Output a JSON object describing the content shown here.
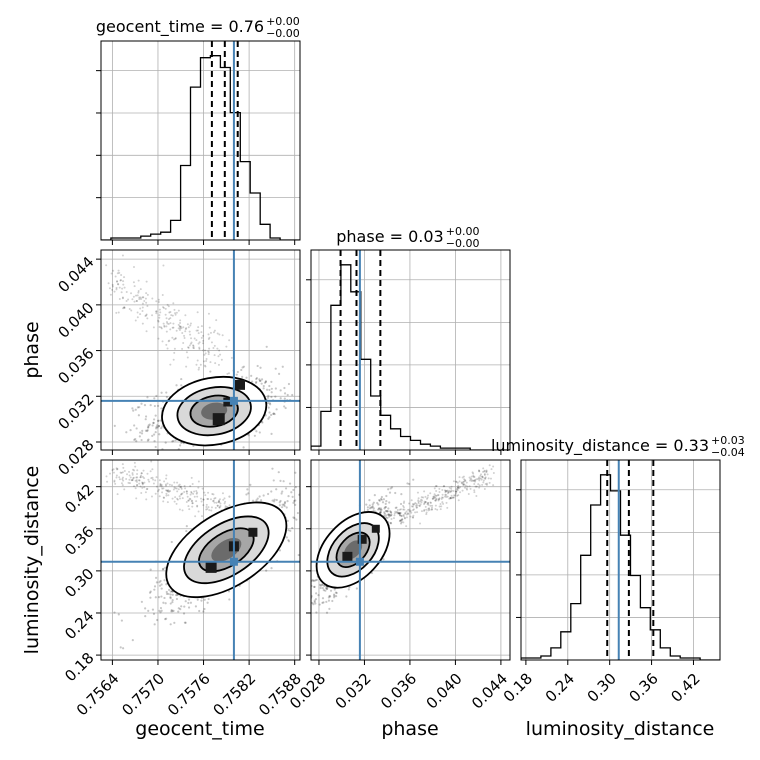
{
  "chart_data": {
    "type": "corner",
    "truth_color": "#4682b4",
    "line_color": "#000000",
    "grid": true,
    "parameters": [
      "geocent_time",
      "phase",
      "luminosity_distance"
    ],
    "truth": {
      "geocent_time": 0.758,
      "phase": 0.0316,
      "luminosity_distance": 0.313
    },
    "ranges": {
      "geocent_time": [
        0.75625,
        0.75887
      ],
      "phase": [
        0.0273,
        0.0448
      ],
      "luminosity_distance": [
        0.173,
        0.458
      ]
    },
    "ticks": {
      "geocent_time": [
        "0.7564",
        "0.7570",
        "0.7576",
        "0.7582",
        "0.7588"
      ],
      "phase": [
        "0.028",
        "0.032",
        "0.036",
        "0.040",
        "0.044"
      ],
      "luminosity_distance": [
        "0.18",
        "0.24",
        "0.30",
        "0.36",
        "0.42"
      ]
    },
    "tick_values": {
      "geocent_time": [
        0.7564,
        0.757,
        0.7576,
        0.7582,
        0.7588
      ],
      "phase": [
        0.028,
        0.032,
        0.036,
        0.04,
        0.044
      ],
      "luminosity_distance": [
        0.18,
        0.24,
        0.3,
        0.36,
        0.42
      ]
    },
    "titles": [
      {
        "param": "geocent_time",
        "name": "geocent_time",
        "value": "0.76",
        "plus": "+0.00",
        "minus": "−0.00"
      },
      {
        "param": "phase",
        "name": "phase",
        "value": "0.03",
        "plus": "+0.00",
        "minus": "−0.00"
      },
      {
        "param": "luminosity_distance",
        "name": "luminosity_distance",
        "value": "0.33",
        "plus": "+0.03",
        "minus": "−0.04"
      }
    ],
    "histograms": {
      "geocent_time": {
        "edges_start": 0.75625,
        "bin_width": 0.000131,
        "counts": [
          0,
          1,
          1,
          1,
          2,
          3,
          4,
          10,
          38,
          78,
          93,
          94,
          88,
          65,
          40,
          24,
          8,
          1,
          0,
          0
        ],
        "quantiles": [
          0.75771,
          0.75788,
          0.75805
        ]
      },
      "phase": {
        "edges_start": 0.0273,
        "bin_width": 0.000875,
        "counts": [
          2,
          20,
          75,
          96,
          82,
          47,
          28,
          18,
          11,
          7,
          5,
          3,
          2,
          1,
          1,
          1,
          0,
          0,
          0,
          0
        ],
        "quantiles": [
          0.0299,
          0.0313,
          0.0334
        ]
      },
      "luminosity_distance": {
        "edges_start": 0.173,
        "bin_width": 0.01425,
        "counts": [
          1,
          1,
          2,
          6,
          14,
          28,
          52,
          77,
          92,
          84,
          62,
          42,
          26,
          15,
          6,
          2,
          1,
          1,
          0,
          0
        ],
        "quantiles": [
          0.2965,
          0.3275,
          0.3625
        ]
      }
    }
  },
  "labels": {
    "x_geocent_time": "geocent_time",
    "x_phase": "phase",
    "x_luminosity_distance": "luminosity_distance",
    "y_phase": "phase",
    "y_luminosity_distance": "luminosity_distance"
  }
}
